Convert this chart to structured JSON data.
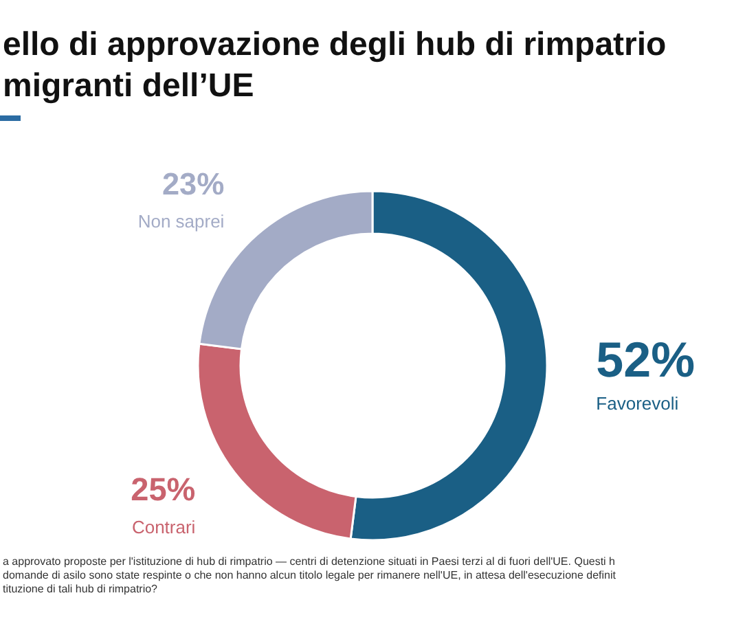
{
  "chart_data": {
    "type": "donut",
    "title": "ello di approvazione degli hub di rimpatrio\nmigranti dell’UE",
    "categories": [
      "Favorevoli",
      "Contrari",
      "Non saprei"
    ],
    "values": [
      52,
      25,
      23
    ],
    "value_labels": [
      "52%",
      "25%",
      "23%"
    ],
    "colors": [
      "#1a5f85",
      "#c9636e",
      "#a3abc6"
    ],
    "annotations": [
      "a approvato proposte per l'istituzione di hub di rimpatrio — centri di detenzione situati in Paesi terzi al di fuori dell'UE. Questi h",
      "domande di asilo sono state respinte o che non hanno alcun titolo legale per rimanere nell'UE, in attesa dell'esecuzione definit",
      "tituzione di tali hub di rimpatrio?"
    ]
  }
}
